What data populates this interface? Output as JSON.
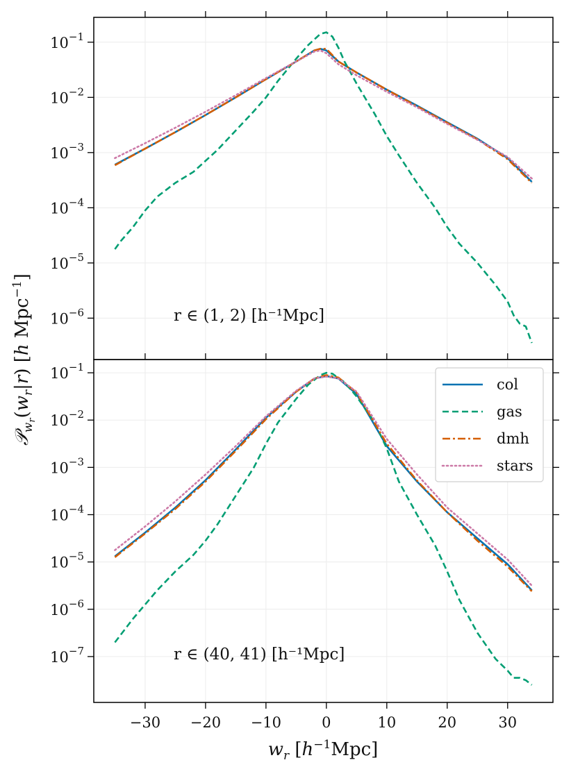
{
  "chart_data": [
    {
      "type": "line",
      "yscale": "log",
      "xlim": [
        -38.5,
        37.5
      ],
      "ylim_log10": [
        -6.75,
        -0.55
      ],
      "xticks": [
        -30,
        -20,
        -10,
        0,
        10,
        20,
        30
      ],
      "xtick_labels": [
        "−30",
        "−20",
        "−10",
        "0",
        "10",
        "20",
        "30"
      ],
      "yticks_log10": [
        -6,
        -5,
        -4,
        -3,
        -2,
        -1
      ],
      "ytick_labels": [
        "10⁻⁶",
        "10⁻⁵",
        "10⁻⁴",
        "10⁻³",
        "10⁻²",
        "10⁻¹"
      ],
      "annotation": "r ∈ (1, 2)  [h⁻¹Mpc]",
      "grid": true,
      "series": [
        {
          "name": "col",
          "color": "#0072B2",
          "style": "solid",
          "x": [
            -35,
            -30,
            -25,
            -20,
            -15,
            -10,
            -5,
            -2,
            -1,
            0,
            2,
            5,
            10,
            15,
            20,
            25,
            30,
            34
          ],
          "log10y": [
            -3.22,
            -2.93,
            -2.63,
            -2.32,
            -2.0,
            -1.67,
            -1.35,
            -1.15,
            -1.12,
            -1.15,
            -1.35,
            -1.55,
            -1.86,
            -2.15,
            -2.45,
            -2.75,
            -3.1,
            -3.53
          ]
        },
        {
          "name": "gas",
          "color": "#009E73",
          "style": "dashed",
          "x": [
            -35,
            -34,
            -32,
            -30,
            -28,
            -25,
            -22,
            -20,
            -18,
            -15,
            -12,
            -10,
            -8,
            -5,
            -3,
            -1,
            0,
            1,
            2,
            3,
            5,
            8,
            10,
            12,
            15,
            18,
            20,
            22,
            25,
            28,
            30,
            31,
            32,
            33,
            34
          ],
          "log10y": [
            -4.75,
            -4.6,
            -4.35,
            -4.05,
            -3.8,
            -3.55,
            -3.35,
            -3.15,
            -2.95,
            -2.6,
            -2.25,
            -2.0,
            -1.7,
            -1.3,
            -1.05,
            -0.85,
            -0.82,
            -0.9,
            -1.1,
            -1.35,
            -1.75,
            -2.3,
            -2.7,
            -3.05,
            -3.55,
            -4.0,
            -4.35,
            -4.65,
            -5.0,
            -5.4,
            -5.7,
            -5.95,
            -6.1,
            -6.15,
            -6.45
          ]
        },
        {
          "name": "dmh",
          "color": "#D55E00",
          "style": "dashdot",
          "x": [
            -35,
            -30,
            -25,
            -20,
            -15,
            -10,
            -5,
            -2,
            -1,
            0,
            2,
            5,
            10,
            15,
            20,
            25,
            30,
            34
          ],
          "log10y": [
            -3.23,
            -2.93,
            -2.63,
            -2.32,
            -2.0,
            -1.67,
            -1.35,
            -1.15,
            -1.12,
            -1.12,
            -1.35,
            -1.55,
            -1.86,
            -2.16,
            -2.46,
            -2.76,
            -3.12,
            -3.55
          ]
        },
        {
          "name": "stars",
          "color": "#CC79A7",
          "style": "dotted",
          "x": [
            -35,
            -30,
            -25,
            -20,
            -15,
            -10,
            -5,
            -2,
            -1,
            0,
            2,
            5,
            10,
            15,
            20,
            25,
            30,
            34
          ],
          "log10y": [
            -3.1,
            -2.83,
            -2.55,
            -2.26,
            -1.96,
            -1.65,
            -1.35,
            -1.17,
            -1.15,
            -1.2,
            -1.4,
            -1.6,
            -1.9,
            -2.18,
            -2.48,
            -2.77,
            -3.08,
            -3.47
          ]
        }
      ]
    },
    {
      "type": "line",
      "yscale": "log",
      "xlim": [
        -38.5,
        37.5
      ],
      "ylim_log10": [
        -7.97,
        -0.72
      ],
      "xticks": [
        -30,
        -20,
        -10,
        0,
        10,
        20,
        30
      ],
      "xtick_labels": [
        "−30",
        "−20",
        "−10",
        "0",
        "10",
        "20",
        "30"
      ],
      "yticks_log10": [
        -7,
        -6,
        -5,
        -4,
        -3,
        -2,
        -1
      ],
      "ytick_labels": [
        "10⁻⁷",
        "10⁻⁶",
        "10⁻⁵",
        "10⁻⁴",
        "10⁻³",
        "10⁻²",
        "10⁻¹"
      ],
      "annotation": "r ∈ (40, 41)  [h⁻¹Mpc]",
      "xlabel": "w_r  [h⁻¹Mpc]",
      "grid": true,
      "legend": {
        "position": "top-right",
        "entries": [
          "col",
          "gas",
          "dmh",
          "stars"
        ]
      },
      "series": [
        {
          "name": "col",
          "color": "#0072B2",
          "style": "solid",
          "x": [
            -35,
            -30,
            -25,
            -20,
            -15,
            -10,
            -5,
            -2,
            0,
            2,
            5,
            10,
            15,
            20,
            25,
            30,
            34
          ],
          "log10y": [
            -4.88,
            -4.38,
            -3.85,
            -3.27,
            -2.62,
            -1.95,
            -1.4,
            -1.12,
            -1.07,
            -1.12,
            -1.45,
            -2.55,
            -3.3,
            -3.95,
            -4.5,
            -5.05,
            -5.6
          ]
        },
        {
          "name": "gas",
          "color": "#009E73",
          "style": "dashed",
          "x": [
            -35,
            -32,
            -30,
            -28,
            -25,
            -22,
            -20,
            -18,
            -15,
            -12,
            -10,
            -8,
            -5,
            -3,
            -1,
            0,
            1,
            3,
            5,
            8,
            10,
            12,
            15,
            18,
            20,
            22,
            25,
            28,
            30,
            31,
            32,
            33,
            34
          ],
          "log10y": [
            -6.7,
            -6.2,
            -5.9,
            -5.6,
            -5.2,
            -4.85,
            -4.55,
            -4.2,
            -3.6,
            -3.0,
            -2.5,
            -2.05,
            -1.55,
            -1.25,
            -1.05,
            -1.0,
            -1.02,
            -1.2,
            -1.5,
            -2.05,
            -2.6,
            -3.3,
            -4.0,
            -4.65,
            -5.2,
            -5.8,
            -6.5,
            -7.05,
            -7.3,
            -7.45,
            -7.45,
            -7.5,
            -7.6
          ]
        },
        {
          "name": "dmh",
          "color": "#D55E00",
          "style": "dashdot",
          "x": [
            -35,
            -30,
            -25,
            -20,
            -15,
            -10,
            -5,
            -2,
            0,
            2,
            5,
            10,
            15,
            20,
            25,
            30,
            34
          ],
          "log10y": [
            -4.9,
            -4.4,
            -3.88,
            -3.3,
            -2.65,
            -1.98,
            -1.4,
            -1.12,
            -1.05,
            -1.1,
            -1.42,
            -2.5,
            -3.28,
            -3.95,
            -4.55,
            -5.1,
            -5.62
          ]
        },
        {
          "name": "stars",
          "color": "#CC79A7",
          "style": "dotted",
          "x": [
            -35,
            -30,
            -25,
            -20,
            -15,
            -10,
            -5,
            -2,
            0,
            2,
            5,
            10,
            15,
            20,
            25,
            30,
            34
          ],
          "log10y": [
            -4.75,
            -4.25,
            -3.72,
            -3.15,
            -2.55,
            -1.92,
            -1.38,
            -1.12,
            -1.08,
            -1.12,
            -1.4,
            -2.4,
            -3.15,
            -3.85,
            -4.4,
            -4.95,
            -5.5
          ]
        }
      ]
    }
  ],
  "shared_ylabel": "𝒫_{w_r}(w_r|r) [h Mpc⁻¹]"
}
